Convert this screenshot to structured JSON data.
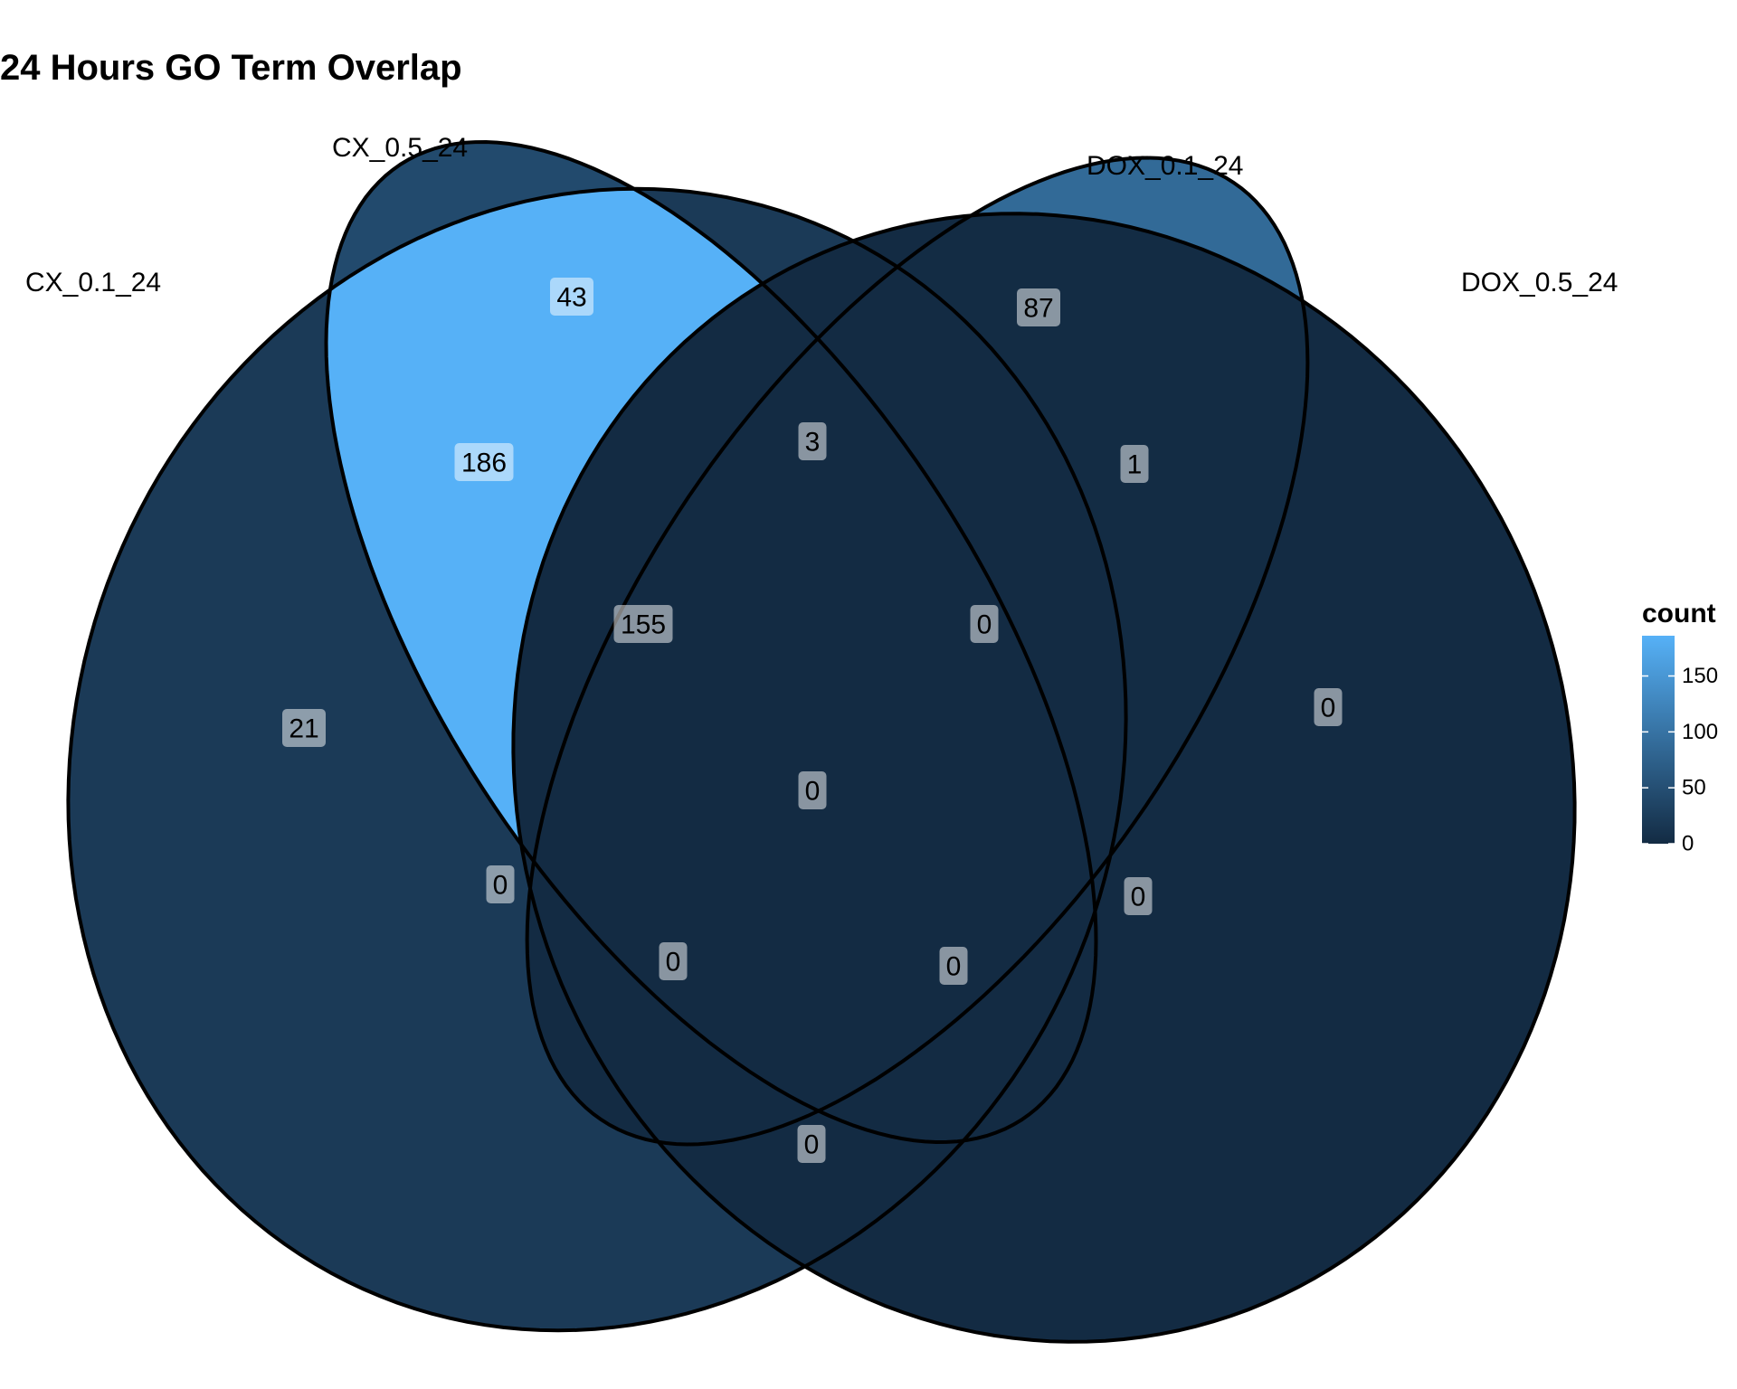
{
  "title": "24 Hours GO Term Overlap",
  "sets": [
    {
      "name": "CX_0.1_24"
    },
    {
      "name": "CX_0.5_24"
    },
    {
      "name": "DOX_0.1_24"
    },
    {
      "name": "DOX_0.5_24"
    }
  ],
  "regions": [
    {
      "sets": [
        "CX_0.1_24"
      ],
      "count": 21
    },
    {
      "sets": [
        "CX_0.5_24"
      ],
      "count": 43
    },
    {
      "sets": [
        "DOX_0.1_24"
      ],
      "count": 87
    },
    {
      "sets": [
        "DOX_0.5_24"
      ],
      "count": 0
    },
    {
      "sets": [
        "CX_0.1_24",
        "CX_0.5_24"
      ],
      "count": 186
    },
    {
      "sets": [
        "CX_0.5_24",
        "DOX_0.1_24"
      ],
      "count": 3
    },
    {
      "sets": [
        "DOX_0.1_24",
        "DOX_0.5_24"
      ],
      "count": 1
    },
    {
      "sets": [
        "CX_0.1_24",
        "DOX_0.1_24"
      ],
      "count": 0
    },
    {
      "sets": [
        "CX_0.5_24",
        "DOX_0.5_24"
      ],
      "count": 0
    },
    {
      "sets": [
        "CX_0.1_24",
        "DOX_0.5_24"
      ],
      "count": 0
    },
    {
      "sets": [
        "CX_0.1_24",
        "CX_0.5_24",
        "DOX_0.1_24"
      ],
      "count": 155
    },
    {
      "sets": [
        "CX_0.5_24",
        "DOX_0.1_24",
        "DOX_0.5_24"
      ],
      "count": 0
    },
    {
      "sets": [
        "CX_0.1_24",
        "DOX_0.1_24",
        "DOX_0.5_24"
      ],
      "count": 0
    },
    {
      "sets": [
        "CX_0.1_24",
        "CX_0.5_24",
        "DOX_0.5_24"
      ],
      "count": 0
    },
    {
      "sets": [
        "CX_0.1_24",
        "CX_0.5_24",
        "DOX_0.1_24",
        "DOX_0.5_24"
      ],
      "count": 0
    }
  ],
  "legend": {
    "title": "count",
    "ticks": [
      "150",
      "100",
      "50",
      "0"
    ],
    "tick_values": [
      150,
      100,
      50,
      0
    ],
    "min": 0,
    "max": 186,
    "color_low": "#132B43",
    "color_high": "#56B1F7"
  },
  "colors": {
    "outline": "#000000",
    "low": "#132B43",
    "high": "#56B1F7"
  }
}
